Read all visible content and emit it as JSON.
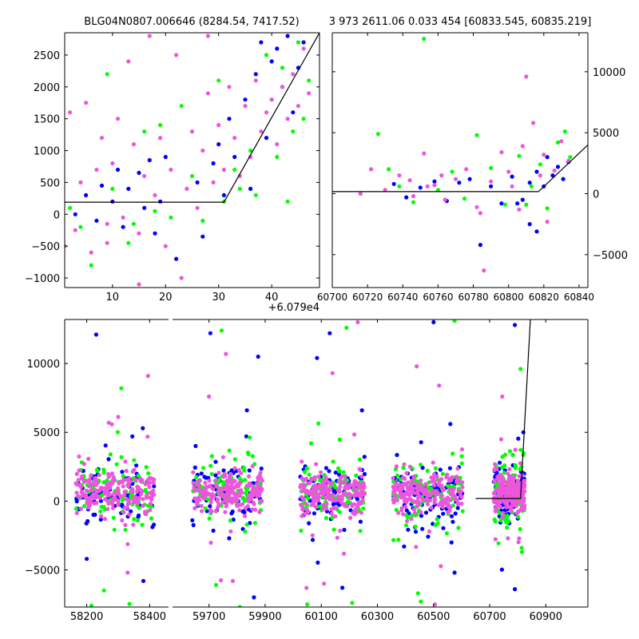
{
  "figure": {
    "left_title": "BLG04N0807.006646 (8284.54, 7417.52)",
    "right_title": "3 973 2611.06 0.033 454 [60833.545, 60835.219]",
    "left_offset_label": "+6.079e4"
  },
  "colors": {
    "blue": "#0000ff",
    "green": "#00ff00",
    "magenta": "#ee55dd",
    "model": "#000000"
  },
  "chart_data": [
    {
      "name": "zoom-left",
      "type": "scatter",
      "title": "BLG04N0807.006646 (8284.54, 7417.52)",
      "xlabel": "",
      "ylabel": "",
      "x_offset": 60790,
      "xlim": [
        1,
        49
      ],
      "ylim": [
        -1150,
        2850
      ],
      "xticks": [
        10,
        20,
        30,
        40
      ],
      "yticks": [
        -1000,
        -500,
        0,
        500,
        1000,
        1500,
        2000,
        2500
      ],
      "grid": false,
      "legend": "none",
      "model": [
        [
          0,
          190
        ],
        [
          31,
          190
        ],
        [
          49,
          2850
        ]
      ],
      "series": [
        {
          "color": "blue",
          "approx": true,
          "points": [
            [
              3,
              0
            ],
            [
              5,
              300
            ],
            [
              7,
              -100
            ],
            [
              8,
              450
            ],
            [
              10,
              200
            ],
            [
              11,
              700
            ],
            [
              12,
              -200
            ],
            [
              13,
              400
            ],
            [
              15,
              650
            ],
            [
              16,
              100
            ],
            [
              17,
              850
            ],
            [
              18,
              -300
            ],
            [
              19,
              200
            ],
            [
              20,
              900
            ],
            [
              22,
              -700
            ],
            [
              26,
              500
            ],
            [
              27,
              -350
            ],
            [
              29,
              800
            ],
            [
              30,
              1100
            ],
            [
              31,
              300
            ],
            [
              32,
              1500
            ],
            [
              33,
              900
            ],
            [
              35,
              1800
            ],
            [
              36,
              400
            ],
            [
              37,
              2200
            ],
            [
              38,
              2700
            ],
            [
              39,
              1200
            ],
            [
              40,
              2400
            ],
            [
              41,
              2600
            ],
            [
              42,
              2000
            ],
            [
              43,
              2800
            ],
            [
              44,
              1600
            ],
            [
              45,
              2300
            ],
            [
              46,
              2700
            ]
          ]
        },
        {
          "color": "green",
          "approx": true,
          "points": [
            [
              2,
              100
            ],
            [
              4,
              -200
            ],
            [
              6,
              -800
            ],
            [
              9,
              2200
            ],
            [
              10,
              400
            ],
            [
              13,
              -450
            ],
            [
              14,
              -150
            ],
            [
              16,
              1300
            ],
            [
              18,
              50
            ],
            [
              19,
              1400
            ],
            [
              21,
              -50
            ],
            [
              23,
              1700
            ],
            [
              25,
              600
            ],
            [
              27,
              -100
            ],
            [
              30,
              2100
            ],
            [
              31,
              200
            ],
            [
              33,
              700
            ],
            [
              34,
              400
            ],
            [
              36,
              1000
            ],
            [
              37,
              300
            ],
            [
              39,
              2500
            ],
            [
              40,
              1800
            ],
            [
              41,
              900
            ],
            [
              42,
              2300
            ],
            [
              43,
              200
            ],
            [
              44,
              1300
            ],
            [
              45,
              2700
            ],
            [
              46,
              1500
            ],
            [
              47,
              2100
            ]
          ]
        },
        {
          "color": "magenta",
          "approx": true,
          "points": [
            [
              1,
              -500
            ],
            [
              2,
              1600
            ],
            [
              3,
              -250
            ],
            [
              4,
              500
            ],
            [
              5,
              1750
            ],
            [
              6,
              -600
            ],
            [
              7,
              700
            ],
            [
              8,
              1200
            ],
            [
              9,
              -150
            ],
            [
              10,
              800
            ],
            [
              11,
              1500
            ],
            [
              12,
              -50
            ],
            [
              13,
              2400
            ],
            [
              14,
              1100
            ],
            [
              15,
              -300
            ],
            [
              16,
              600
            ],
            [
              17,
              2800
            ],
            [
              18,
              300
            ],
            [
              19,
              1200
            ],
            [
              20,
              -500
            ],
            [
              21,
              700
            ],
            [
              22,
              2500
            ],
            [
              23,
              -1000
            ],
            [
              24,
              400
            ],
            [
              25,
              1300
            ],
            [
              26,
              100
            ],
            [
              27,
              1000
            ],
            [
              28,
              1900
            ],
            [
              29,
              500
            ],
            [
              30,
              1400
            ],
            [
              31,
              700
            ],
            [
              32,
              2000
            ],
            [
              33,
              1200
            ],
            [
              34,
              600
            ],
            [
              35,
              1700
            ],
            [
              36,
              900
            ],
            [
              37,
              2100
            ],
            [
              38,
              1300
            ],
            [
              39,
              1600
            ],
            [
              40,
              1800
            ],
            [
              41,
              1100
            ],
            [
              42,
              2000
            ],
            [
              43,
              1500
            ],
            [
              44,
              2200
            ],
            [
              45,
              1700
            ],
            [
              46,
              2600
            ],
            [
              47,
              1900
            ],
            [
              15,
              -1100
            ],
            [
              28,
              2800
            ],
            [
              9,
              -450
            ]
          ]
        }
      ]
    },
    {
      "name": "zoom-right",
      "type": "scatter",
      "title": "3 973 2611.06 0.033 454 [60833.545, 60835.219]",
      "xlabel": "",
      "ylabel": "",
      "xlim": [
        60700,
        60845
      ],
      "ylim": [
        -7700,
        13200
      ],
      "xticks": [
        60700,
        60720,
        60740,
        60760,
        60780,
        60800,
        60820,
        60840
      ],
      "yticks": [
        -5000,
        0,
        5000,
        10000
      ],
      "grid": false,
      "legend": "none",
      "model": [
        [
          60700,
          170
        ],
        [
          60817,
          170
        ],
        [
          60845,
          4000
        ]
      ],
      "series": [
        {
          "color": "blue",
          "approx": true,
          "points": [
            [
              60735,
              800
            ],
            [
              60742,
              -300
            ],
            [
              60750,
              500
            ],
            [
              60758,
              1000
            ],
            [
              60765,
              -600
            ],
            [
              60772,
              900
            ],
            [
              60778,
              1200
            ],
            [
              60784,
              -4200
            ],
            [
              60790,
              600
            ],
            [
              60796,
              -800
            ],
            [
              60802,
              1400
            ],
            [
              60808,
              -500
            ],
            [
              60812,
              900
            ],
            [
              60816,
              1800
            ],
            [
              60820,
              600
            ],
            [
              60825,
              1500
            ],
            [
              60828,
              2200
            ],
            [
              60831,
              1200
            ],
            [
              60834,
              2600
            ],
            [
              60812,
              -2500
            ],
            [
              60805,
              -800
            ],
            [
              60822,
              3000
            ],
            [
              60816,
              -3100
            ]
          ]
        },
        {
          "color": "green",
          "approx": true,
          "points": [
            [
              60726,
              4900
            ],
            [
              60732,
              2000
            ],
            [
              60738,
              600
            ],
            [
              60746,
              -700
            ],
            [
              60752,
              12700
            ],
            [
              60760,
              300
            ],
            [
              60768,
              1800
            ],
            [
              60775,
              -400
            ],
            [
              60782,
              4800
            ],
            [
              60790,
              2100
            ],
            [
              60798,
              -900
            ],
            [
              60806,
              3100
            ],
            [
              60813,
              600
            ],
            [
              60818,
              2400
            ],
            [
              60822,
              -1200
            ],
            [
              60828,
              4200
            ],
            [
              60832,
              5100
            ],
            [
              60835,
              3000
            ],
            [
              60810,
              -900
            ]
          ]
        },
        {
          "color": "magenta",
          "approx": true,
          "points": [
            [
              60716,
              0
            ],
            [
              60722,
              2000
            ],
            [
              60730,
              300
            ],
            [
              60738,
              1500
            ],
            [
              60746,
              -200
            ],
            [
              60752,
              3300
            ],
            [
              60758,
              700
            ],
            [
              60764,
              -500
            ],
            [
              60770,
              1200
            ],
            [
              60776,
              2000
            ],
            [
              60782,
              -1100
            ],
            [
              60786,
              -6300
            ],
            [
              60790,
              1000
            ],
            [
              60796,
              3400
            ],
            [
              60802,
              600
            ],
            [
              60806,
              -1300
            ],
            [
              60810,
              9600
            ],
            [
              60814,
              5800
            ],
            [
              60818,
              1500
            ],
            [
              60820,
              3200
            ],
            [
              60822,
              -2300
            ],
            [
              60826,
              1900
            ],
            [
              60830,
              4300
            ],
            [
              60834,
              2700
            ],
            [
              60784,
              -1600
            ],
            [
              60800,
              1800
            ],
            [
              60808,
              3900
            ],
            [
              60762,
              1500
            ],
            [
              60744,
              1100
            ],
            [
              60754,
              600
            ]
          ]
        }
      ]
    },
    {
      "name": "full-light-curve",
      "type": "scatter",
      "title": "",
      "xlabel": "",
      "ylabel": "",
      "ylim": [
        -7700,
        13200
      ],
      "yticks": [
        -5000,
        0,
        5000,
        10000
      ],
      "grid": false,
      "legend": "none",
      "segments": [
        {
          "xlim": [
            58130,
            58460
          ],
          "xticks": [
            58200,
            58400
          ]
        },
        {
          "xlim": [
            59570,
            61050
          ],
          "xticks": [
            59700,
            59900,
            60100,
            60300,
            60500,
            60700,
            60900
          ]
        }
      ],
      "seasons": [
        {
          "center": 58290,
          "halfwidth": 125,
          "spread": 1500,
          "outliers": [
            [
              58230,
              12100
            ],
            [
              58310,
              8200
            ],
            [
              58395,
              9100
            ],
            [
              58200,
              -4200
            ],
            [
              58255,
              -6500
            ],
            [
              58330,
              -5200
            ],
            [
              58380,
              -5800
            ],
            [
              58215,
              -7600
            ],
            [
              58270,
              5700
            ],
            [
              58345,
              4700
            ]
          ]
        },
        {
          "center": 59765,
          "halfwidth": 125,
          "spread": 1500,
          "outliers": [
            [
              59705,
              12200
            ],
            [
              59745,
              12400
            ],
            [
              59760,
              10700
            ],
            [
              59875,
              10500
            ],
            [
              59725,
              -6100
            ],
            [
              59785,
              -5800
            ],
            [
              59860,
              -7000
            ],
            [
              59810,
              -7700
            ],
            [
              59700,
              7600
            ],
            [
              59835,
              6600
            ]
          ]
        },
        {
          "center": 60140,
          "halfwidth": 115,
          "spread": 1500,
          "outliers": [
            [
              60130,
              12200
            ],
            [
              60190,
              12600
            ],
            [
              60230,
              13000
            ],
            [
              60085,
              10400
            ],
            [
              60050,
              -7500
            ],
            [
              60110,
              -6000
            ],
            [
              60175,
              -6300
            ],
            [
              60210,
              -7400
            ],
            [
              60140,
              9300
            ],
            [
              60245,
              6600
            ]
          ]
        },
        {
          "center": 60480,
          "halfwidth": 125,
          "spread": 1500,
          "outliers": [
            [
              60500,
              13000
            ],
            [
              60575,
              13100
            ],
            [
              60440,
              9800
            ],
            [
              60395,
              -3300
            ],
            [
              60445,
              -6700
            ],
            [
              60505,
              -7500
            ],
            [
              60575,
              -5200
            ],
            [
              60455,
              -7300
            ],
            [
              60520,
              8400
            ],
            [
              60560,
              5600
            ]
          ]
        },
        {
          "center": 60770,
          "halfwidth": 55,
          "spread": 1500,
          "outliers": [
            [
              60790,
              12800
            ],
            [
              60810,
              9600
            ],
            [
              60745,
              7600
            ],
            [
              60790,
              -6400
            ],
            [
              60815,
              -3700
            ],
            [
              60765,
              -2700
            ],
            [
              60820,
              5000
            ],
            [
              60740,
              -1400
            ]
          ]
        }
      ],
      "model": [
        [
          60650,
          190
        ],
        [
          60810,
          190
        ],
        [
          60845,
          13200
        ]
      ]
    }
  ]
}
